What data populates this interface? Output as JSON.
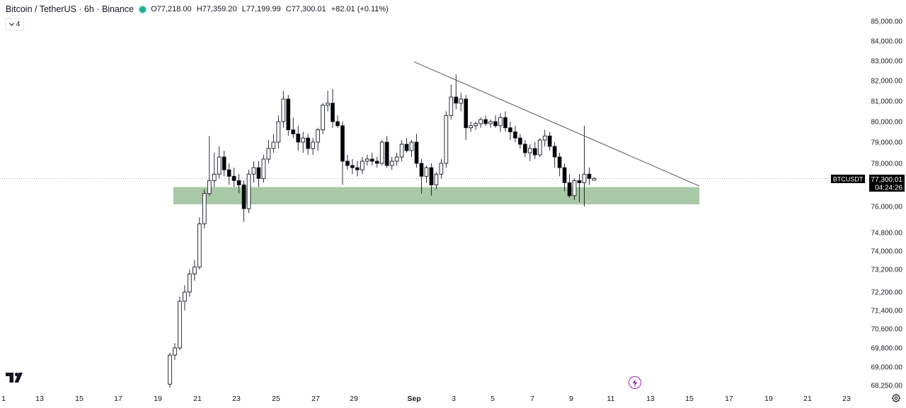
{
  "legend": {
    "symbol": "Bitcoin / TetherUS · 6h · Binance",
    "open": "O77,218.00",
    "high": "H77,359.20",
    "low": "L77,199.99",
    "close": "C77,300.01",
    "change": "+82.01 (+0.11%)",
    "collapse_count": "4"
  },
  "price_tag": {
    "ticker": "BTCUSDT",
    "price": "77,300.01",
    "countdown": "04:24:26"
  },
  "colors": {
    "up": "#ffffff",
    "down": "#000000",
    "zone": "#a8c8a6",
    "line": "#555555",
    "price_line": "#9598a1"
  },
  "icons": {
    "logo": "tradingview-logo-icon",
    "alert": "lightning-icon",
    "settings": "gear-icon"
  },
  "chart_data": {
    "type": "candlestick",
    "price_axis_labels": [
      "85,000.00",
      "84,000.00",
      "83,000.00",
      "82,000.00",
      "81,000.00",
      "80,000.00",
      "79,000.00",
      "78,000.00",
      "76,000.00",
      "74,800.00",
      "74,000.00",
      "73,200.00",
      "72,200.00",
      "71,400.00",
      "70,600.00",
      "69,800.00",
      "69,000.00",
      "68,250.00"
    ],
    "time_axis_labels": [
      "1",
      "13",
      "15",
      "17",
      "19",
      "21",
      "23",
      "25",
      "27",
      "29",
      "Sep",
      "3",
      "5",
      "7",
      "9",
      "11",
      "13",
      "15",
      "17",
      "19",
      "21",
      "23"
    ],
    "last_price": 77300.01,
    "support_zone": {
      "low": 76100,
      "high": 76900
    },
    "resistance_line": {
      "from": [
        "Sep 3",
        82950
      ],
      "to": [
        "Sep 15",
        76950
      ]
    },
    "candles": [
      [
        68300,
        69600,
        68150,
        69500
      ],
      [
        69500,
        70000,
        69300,
        69800
      ],
      [
        69800,
        72000,
        69700,
        71800
      ],
      [
        71800,
        72500,
        71400,
        72200
      ],
      [
        72200,
        73200,
        72000,
        73000
      ],
      [
        73000,
        73600,
        72700,
        73300
      ],
      [
        73300,
        75500,
        73200,
        75200
      ],
      [
        75200,
        76800,
        75000,
        76600
      ],
      [
        76600,
        79300,
        76500,
        77200
      ],
      [
        77200,
        78500,
        76900,
        77500
      ],
      [
        77500,
        78800,
        77300,
        78300
      ],
      [
        78300,
        78600,
        77400,
        77700
      ],
      [
        77700,
        78000,
        77000,
        77400
      ],
      [
        77400,
        77800,
        76900,
        77200
      ],
      [
        77200,
        77500,
        76600,
        77000
      ],
      [
        77000,
        77200,
        75300,
        75900
      ],
      [
        75900,
        77700,
        75700,
        77500
      ],
      [
        77500,
        78100,
        77100,
        77800
      ],
      [
        77800,
        78100,
        76900,
        77300
      ],
      [
        77300,
        78400,
        77100,
        78200
      ],
      [
        78200,
        79100,
        78000,
        78700
      ],
      [
        78700,
        79400,
        78500,
        79000
      ],
      [
        79000,
        80300,
        78700,
        80000
      ],
      [
        80000,
        81500,
        79700,
        81100
      ],
      [
        81100,
        81300,
        79300,
        79600
      ],
      [
        79600,
        80200,
        79200,
        79400
      ],
      [
        79400,
        79800,
        78600,
        79000
      ],
      [
        79000,
        79500,
        78500,
        79200
      ],
      [
        79200,
        79400,
        78400,
        78700
      ],
      [
        78700,
        79200,
        78400,
        79000
      ],
      [
        79000,
        79700,
        78600,
        79600
      ],
      [
        79600,
        80900,
        79400,
        80800
      ],
      [
        80800,
        81500,
        80500,
        80900
      ],
      [
        80900,
        81600,
        79700,
        80000
      ],
      [
        80000,
        80300,
        79700,
        79800
      ],
      [
        79800,
        80000,
        77000,
        78100
      ],
      [
        78100,
        78400,
        77700,
        77900
      ],
      [
        77900,
        78200,
        77500,
        77800
      ],
      [
        77800,
        78100,
        77400,
        77700
      ],
      [
        77700,
        78300,
        77500,
        78100
      ],
      [
        78100,
        78400,
        77900,
        78200
      ],
      [
        78200,
        78500,
        77900,
        78100
      ],
      [
        78100,
        78300,
        77800,
        78000
      ],
      [
        78000,
        79100,
        77900,
        79000
      ],
      [
        79000,
        79300,
        77800,
        77900
      ],
      [
        77900,
        78300,
        77700,
        78100
      ],
      [
        78100,
        78500,
        77900,
        78300
      ],
      [
        78300,
        79100,
        78100,
        78900
      ],
      [
        78900,
        79200,
        78500,
        78600
      ],
      [
        78600,
        79100,
        78300,
        79000
      ],
      [
        79000,
        79400,
        77800,
        78000
      ],
      [
        78000,
        78200,
        76600,
        77400
      ],
      [
        77400,
        77900,
        77100,
        77800
      ],
      [
        77800,
        78000,
        76500,
        77000
      ],
      [
        77000,
        77600,
        76800,
        77500
      ],
      [
        77500,
        78200,
        77300,
        78000
      ],
      [
        78000,
        80500,
        77800,
        80300
      ],
      [
        80300,
        81800,
        80100,
        81200
      ],
      [
        81200,
        82300,
        80600,
        80900
      ],
      [
        80900,
        81400,
        80500,
        81100
      ],
      [
        81100,
        81300,
        79100,
        79700
      ],
      [
        79700,
        80000,
        79500,
        79800
      ],
      [
        79800,
        80000,
        79600,
        79900
      ],
      [
        79900,
        80200,
        79700,
        80100
      ],
      [
        80100,
        80300,
        79800,
        79900
      ],
      [
        79900,
        80100,
        79700,
        80000
      ],
      [
        80000,
        80300,
        79700,
        79800
      ],
      [
        79800,
        80400,
        79500,
        80200
      ],
      [
        80200,
        80500,
        79500,
        79700
      ],
      [
        79700,
        80000,
        79100,
        79500
      ],
      [
        79500,
        79800,
        79000,
        79200
      ],
      [
        79200,
        79400,
        78700,
        78900
      ],
      [
        78900,
        79100,
        78300,
        78500
      ],
      [
        78500,
        78900,
        78100,
        78700
      ],
      [
        78700,
        79000,
        78200,
        78400
      ],
      [
        78400,
        79200,
        78300,
        79100
      ],
      [
        79100,
        79600,
        78800,
        79300
      ],
      [
        79300,
        79500,
        78600,
        78800
      ],
      [
        78800,
        79000,
        77800,
        78300
      ],
      [
        78300,
        78500,
        77400,
        77800
      ],
      [
        77800,
        78000,
        76700,
        77100
      ],
      [
        77100,
        77500,
        76400,
        76500
      ],
      [
        76500,
        77300,
        76300,
        77200
      ],
      [
        77200,
        77500,
        76200,
        77100
      ],
      [
        77100,
        79800,
        76000,
        77500
      ],
      [
        77500,
        77800,
        77000,
        77300
      ],
      [
        77218,
        77359.2,
        77199.99,
        77300.01
      ]
    ]
  }
}
